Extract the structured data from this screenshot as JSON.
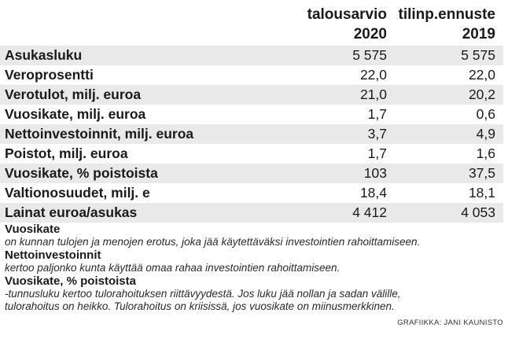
{
  "header": {
    "col1_line1": "talousarvio",
    "col1_line2": "2020",
    "col2_line1": "tilinp.ennuste",
    "col2_line2": "2019"
  },
  "rows": [
    {
      "label": "Asukasluku",
      "v2020": "5 575",
      "v2019": "5 575"
    },
    {
      "label": "Veroprosentti",
      "v2020": "22,0",
      "v2019": "22,0"
    },
    {
      "label": "Verotulot, milj. euroa",
      "v2020": "21,0",
      "v2019": "20,2"
    },
    {
      "label": "Vuosikate, milj. euroa",
      "v2020": "1,7",
      "v2019": "0,6"
    },
    {
      "label": "Nettoinvestoinnit, milj. euroa",
      "v2020": "3,7",
      "v2019": "4,9"
    },
    {
      "label": "Poistot, milj. euroa",
      "v2020": "1,7",
      "v2019": "1,6"
    },
    {
      "label": "Vuosikate, % poistoista",
      "v2020": "103",
      "v2019": "37,5"
    },
    {
      "label": "Valtionosuudet, milj. e",
      "v2020": "18,4",
      "v2019": "18,1"
    },
    {
      "label": "Lainat euroa/asukas",
      "v2020": "4 412",
      "v2019": "4 053"
    }
  ],
  "notes": [
    {
      "title": "Vuosikate",
      "lines": [
        "on kunnan tulojen ja menojen erotus, joka jää käytettäväksi investointien rahoittamiseen."
      ]
    },
    {
      "title": "Nettoinvestoinnit",
      "lines": [
        "kertoo paljonko kunta käyttää omaa rahaa investointien rahoittamiseen."
      ]
    },
    {
      "title": "Vuosikate, % poistoista",
      "lines": [
        "-tunnusluku kertoo tulorahoituksen riittävyydestä. Jos luku jää nollan ja sadan välille,",
        "tulorahoitus on heikko. Tulorahoitus on kriisissä, jos vuosikate on miinusmerkkinen."
      ]
    }
  ],
  "credit": "GRAFIIKKA: JANI KAUNISTO",
  "colors": {
    "row_shade": "#e9e9e9",
    "text": "#1a1a1a"
  }
}
